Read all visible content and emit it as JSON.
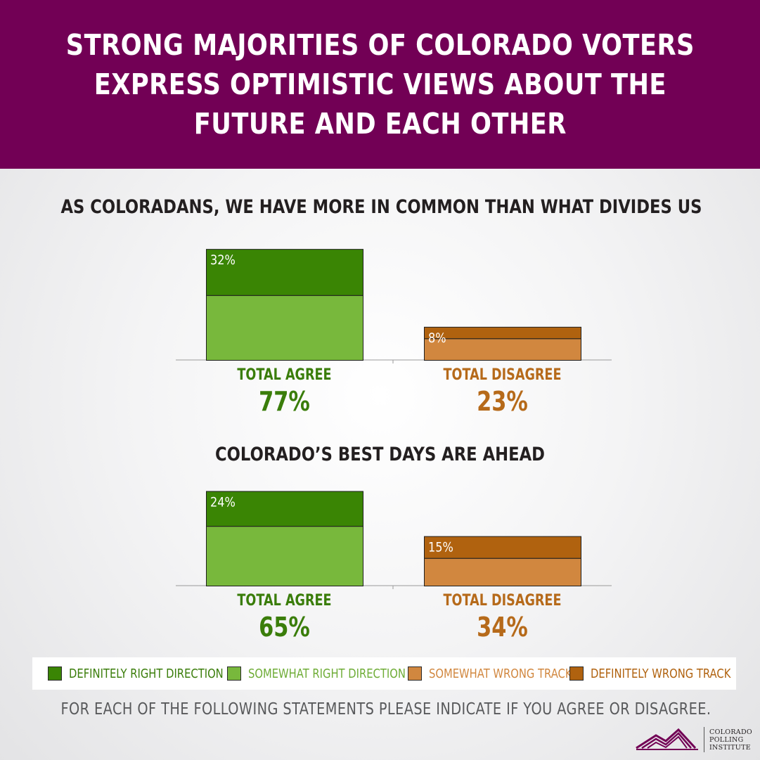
{
  "header": {
    "title_lines": [
      "STRONG MAJORITIES OF COLORADO VOTERS",
      "EXPRESS OPTIMISTIC VIEWS ABOUT THE",
      "FUTURE AND EACH OTHER"
    ]
  },
  "colors": {
    "header_bg": "#720055",
    "definitely_right": "#3a8504",
    "somewhat_right": "#78b83c",
    "somewhat_wrong": "#d1873f",
    "definitely_wrong": "#b0620f",
    "agree_text": "#3a7d0a",
    "disagree_text": "#b66a1a"
  },
  "chart_data": [
    {
      "type": "bar",
      "title": "AS COLORADANS, WE HAVE MORE IN COMMON THAN WHAT DIVIDES US",
      "stacked": true,
      "categories": [
        "TOTAL AGREE",
        "TOTAL DISAGREE"
      ],
      "totals": [
        "77%",
        "23%"
      ],
      "series": [
        {
          "name": "DEFINITELY RIGHT DIRECTION",
          "values": [
            32,
            0
          ]
        },
        {
          "name": "SOMEWHAT RIGHT DIRECTION",
          "values": [
            45,
            0
          ]
        },
        {
          "name": "SOMEWHAT WRONG TRACK",
          "values": [
            0,
            15
          ]
        },
        {
          "name": "DEFINITELY WRONG TRACK",
          "values": [
            0,
            8
          ]
        }
      ],
      "data_labels": [
        "32%",
        "8%"
      ],
      "ylim": [
        0,
        77
      ]
    },
    {
      "type": "bar",
      "title": "COLORADO’S BEST DAYS ARE AHEAD",
      "stacked": true,
      "categories": [
        "TOTAL AGREE",
        "TOTAL DISAGREE"
      ],
      "totals": [
        "65%",
        "34%"
      ],
      "series": [
        {
          "name": "DEFINITELY RIGHT DIRECTION",
          "values": [
            24,
            0
          ]
        },
        {
          "name": "SOMEWHAT RIGHT DIRECTION",
          "values": [
            41,
            0
          ]
        },
        {
          "name": "SOMEWHAT WRONG TRACK",
          "values": [
            0,
            19
          ]
        },
        {
          "name": "DEFINITELY WRONG TRACK",
          "values": [
            0,
            15
          ]
        }
      ],
      "data_labels": [
        "24%",
        "15%"
      ],
      "ylim": [
        0,
        65
      ]
    }
  ],
  "legend": [
    {
      "label": "DEFINITELY RIGHT DIRECTION",
      "color": "#3a8504",
      "text_color": "#3a7d0a"
    },
    {
      "label": "SOMEWHAT RIGHT DIRECTION",
      "color": "#78b83c",
      "text_color": "#6eac36"
    },
    {
      "label": "SOMEWHAT WRONG TRACK",
      "color": "#d1873f",
      "text_color": "#d1873f"
    },
    {
      "label": "DEFINITELY WRONG TRACK",
      "color": "#b0620f",
      "text_color": "#b0620f"
    }
  ],
  "footer": {
    "question": "FOR EACH OF THE FOLLOWING STATEMENTS PLEASE INDICATE IF YOU AGREE OR DISAGREE.",
    "logo_lines": [
      "COLORADO",
      "POLLING",
      "INSTITUTE"
    ]
  }
}
